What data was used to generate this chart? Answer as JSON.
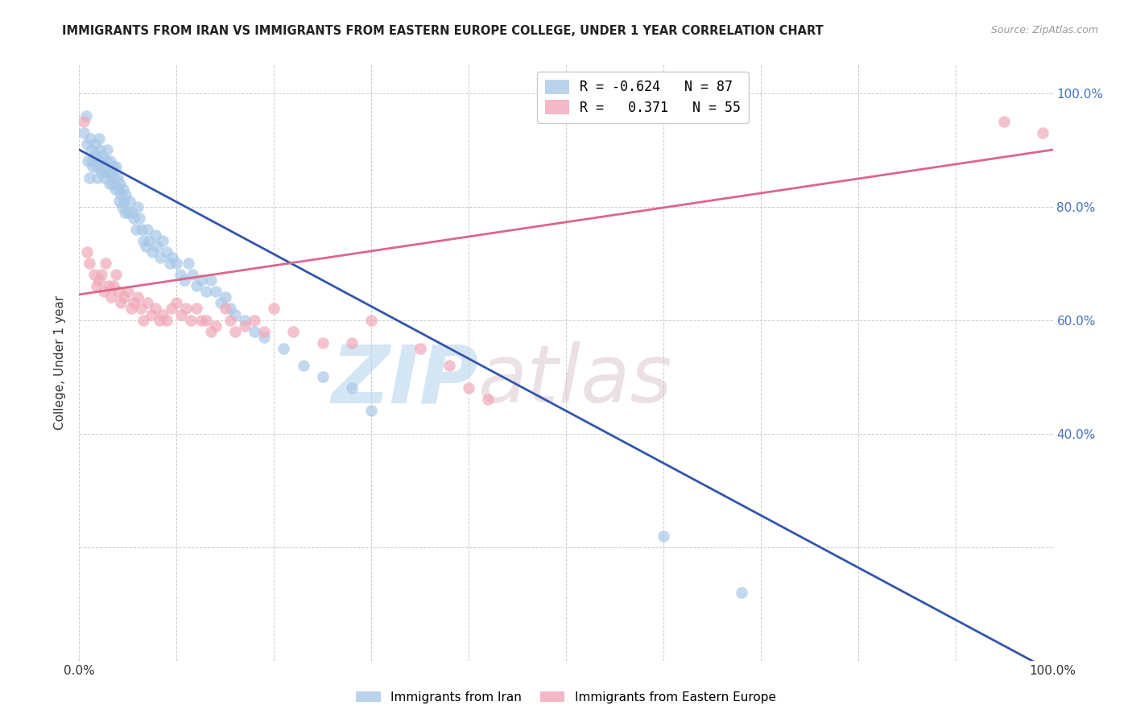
{
  "title": "IMMIGRANTS FROM IRAN VS IMMIGRANTS FROM EASTERN EUROPE COLLEGE, UNDER 1 YEAR CORRELATION CHART",
  "source": "Source: ZipAtlas.com",
  "ylabel": "College, Under 1 year",
  "legend_blue_r": "-0.624",
  "legend_blue_n": "87",
  "legend_pink_r": "0.371",
  "legend_pink_n": "55",
  "blue_color": "#a8c8e8",
  "pink_color": "#f0a8b8",
  "blue_line_color": "#3355aa",
  "pink_line_color": "#dd6688",
  "blue_line_x0": 0.0,
  "blue_line_y0": 0.9,
  "blue_line_x1": 1.0,
  "blue_line_y1": -0.02,
  "pink_line_x0": 0.0,
  "pink_line_y0": 0.645,
  "pink_line_x1": 1.0,
  "pink_line_y1": 0.9,
  "blue_points_x": [
    0.005,
    0.007,
    0.008,
    0.009,
    0.01,
    0.011,
    0.012,
    0.013,
    0.014,
    0.015,
    0.016,
    0.017,
    0.018,
    0.019,
    0.02,
    0.021,
    0.022,
    0.023,
    0.024,
    0.025,
    0.026,
    0.027,
    0.028,
    0.029,
    0.03,
    0.031,
    0.032,
    0.033,
    0.034,
    0.035,
    0.036,
    0.037,
    0.038,
    0.039,
    0.04,
    0.041,
    0.042,
    0.043,
    0.044,
    0.045,
    0.046,
    0.047,
    0.048,
    0.05,
    0.052,
    0.054,
    0.056,
    0.058,
    0.06,
    0.062,
    0.064,
    0.066,
    0.068,
    0.07,
    0.072,
    0.075,
    0.078,
    0.08,
    0.083,
    0.086,
    0.09,
    0.093,
    0.096,
    0.1,
    0.104,
    0.108,
    0.112,
    0.116,
    0.12,
    0.125,
    0.13,
    0.135,
    0.14,
    0.145,
    0.15,
    0.155,
    0.16,
    0.17,
    0.18,
    0.19,
    0.21,
    0.23,
    0.25,
    0.28,
    0.3,
    0.6,
    0.68
  ],
  "blue_points_y": [
    0.93,
    0.96,
    0.91,
    0.88,
    0.85,
    0.92,
    0.9,
    0.88,
    0.87,
    0.89,
    0.91,
    0.89,
    0.87,
    0.85,
    0.92,
    0.9,
    0.88,
    0.86,
    0.89,
    0.87,
    0.85,
    0.86,
    0.88,
    0.9,
    0.86,
    0.84,
    0.88,
    0.86,
    0.84,
    0.87,
    0.85,
    0.83,
    0.87,
    0.85,
    0.83,
    0.81,
    0.84,
    0.82,
    0.8,
    0.83,
    0.81,
    0.79,
    0.82,
    0.79,
    0.81,
    0.79,
    0.78,
    0.76,
    0.8,
    0.78,
    0.76,
    0.74,
    0.73,
    0.76,
    0.74,
    0.72,
    0.75,
    0.73,
    0.71,
    0.74,
    0.72,
    0.7,
    0.71,
    0.7,
    0.68,
    0.67,
    0.7,
    0.68,
    0.66,
    0.67,
    0.65,
    0.67,
    0.65,
    0.63,
    0.64,
    0.62,
    0.61,
    0.6,
    0.58,
    0.57,
    0.55,
    0.52,
    0.5,
    0.48,
    0.44,
    0.22,
    0.12
  ],
  "pink_points_x": [
    0.005,
    0.008,
    0.01,
    0.015,
    0.018,
    0.02,
    0.023,
    0.025,
    0.027,
    0.03,
    0.033,
    0.035,
    0.038,
    0.04,
    0.043,
    0.046,
    0.05,
    0.053,
    0.056,
    0.06,
    0.063,
    0.066,
    0.07,
    0.074,
    0.078,
    0.082,
    0.086,
    0.09,
    0.095,
    0.1,
    0.105,
    0.11,
    0.115,
    0.12,
    0.125,
    0.13,
    0.135,
    0.14,
    0.15,
    0.155,
    0.16,
    0.17,
    0.18,
    0.19,
    0.2,
    0.22,
    0.25,
    0.28,
    0.3,
    0.35,
    0.38,
    0.4,
    0.42,
    0.95,
    0.99
  ],
  "pink_points_y": [
    0.95,
    0.72,
    0.7,
    0.68,
    0.66,
    0.67,
    0.68,
    0.65,
    0.7,
    0.66,
    0.64,
    0.66,
    0.68,
    0.65,
    0.63,
    0.64,
    0.65,
    0.62,
    0.63,
    0.64,
    0.62,
    0.6,
    0.63,
    0.61,
    0.62,
    0.6,
    0.61,
    0.6,
    0.62,
    0.63,
    0.61,
    0.62,
    0.6,
    0.62,
    0.6,
    0.6,
    0.58,
    0.59,
    0.62,
    0.6,
    0.58,
    0.59,
    0.6,
    0.58,
    0.62,
    0.58,
    0.56,
    0.56,
    0.6,
    0.55,
    0.52,
    0.48,
    0.46,
    0.95,
    0.93
  ],
  "xlim": [
    0.0,
    1.0
  ],
  "ylim": [
    0.0,
    1.05
  ],
  "xtick_positions": [
    0.0,
    0.1,
    0.2,
    0.3,
    0.4,
    0.5,
    0.6,
    0.7,
    0.8,
    0.9,
    1.0
  ],
  "ytick_positions": [
    0.0,
    0.2,
    0.4,
    0.6,
    0.8,
    1.0
  ],
  "grid_color": "#cccccc",
  "background_color": "#ffffff",
  "right_y_color": "#4472c4"
}
